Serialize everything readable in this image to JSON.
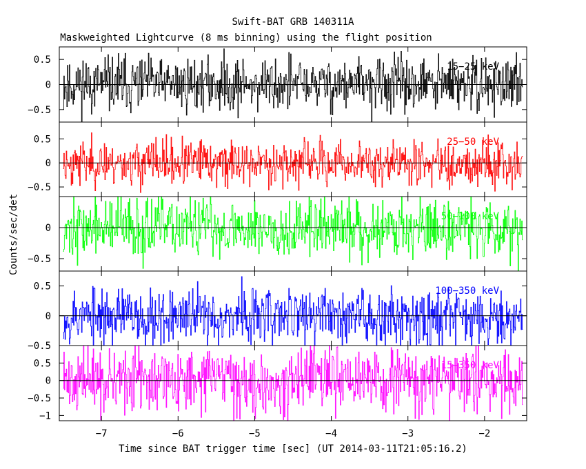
{
  "chart_data": {
    "type": "line",
    "title": "Swift-BAT GRB 140311A",
    "subtitle": "Maskweighted Lightcurve (8 ms binning) using the flight position",
    "xlabel": "Time since BAT trigger time [sec] (UT 2014-03-11T21:05:16.2)",
    "ylabel": "Counts/sec/det",
    "xlim": [
      -7.55,
      -1.45
    ],
    "x_ticks": [
      -7,
      -6,
      -5,
      -4,
      -3,
      -2
    ],
    "x_tick_labels": [
      "−7",
      "−6",
      "−5",
      "−4",
      "−3",
      "−2"
    ],
    "data_range": [
      -7.5,
      -1.5
    ],
    "bin_size_sec": 0.008,
    "series": [
      {
        "name": "15-25 keV",
        "label": "15−25 keV",
        "color": "#000000",
        "ylim": [
          -0.75,
          0.75
        ],
        "ticks": [
          -0.5,
          0,
          0.5
        ],
        "tick_labels": [
          "−0.5",
          "0",
          "0.5"
        ],
        "amplitude": 0.27,
        "seed": 11
      },
      {
        "name": "25-50 keV",
        "label": "25−50 keV",
        "color": "#ff0000",
        "ylim": [
          -0.7,
          0.85
        ],
        "ticks": [
          -0.5,
          0,
          0.5
        ],
        "tick_labels": [
          "−0.5",
          "0",
          "0.5"
        ],
        "amplitude": 0.23,
        "seed": 23
      },
      {
        "name": "50-100 keV",
        "label": "50−100 keV",
        "color": "#00ff00",
        "ylim": [
          -0.7,
          0.5
        ],
        "ticks": [
          -0.5,
          0
        ],
        "tick_labels": [
          "−0.5",
          "0"
        ],
        "amplitude": 0.24,
        "seed": 37
      },
      {
        "name": "100-350 keV",
        "label": "100−350 keV",
        "color": "#0000ff",
        "ylim": [
          -0.5,
          0.75
        ],
        "ticks": [
          -0.5,
          0,
          0.5
        ],
        "tick_labels": [
          "−0.5",
          "0",
          "0.5"
        ],
        "amplitude": 0.24,
        "seed": 53
      },
      {
        "name": "15-350 keV",
        "label": "15−350 keV",
        "color": "#ff00ff",
        "ylim": [
          -1.15,
          1.0
        ],
        "ticks": [
          -1,
          -0.5,
          0,
          0.5
        ],
        "tick_labels": [
          "−1",
          "−0.5",
          "0",
          "0.5"
        ],
        "amplitude": 0.45,
        "seed": 71
      }
    ]
  }
}
